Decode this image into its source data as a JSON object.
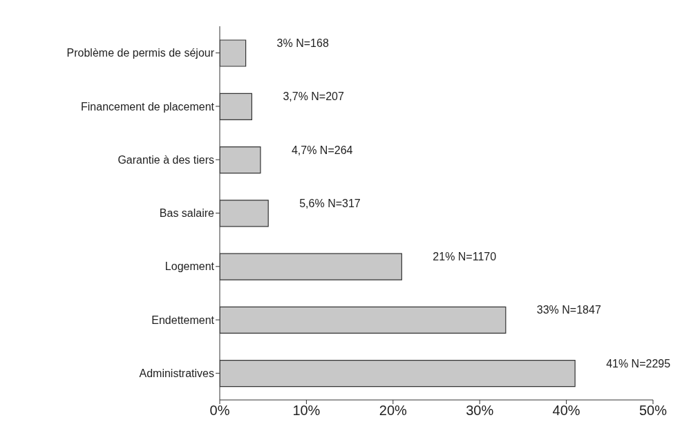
{
  "chart_data": {
    "type": "bar",
    "orientation": "horizontal",
    "categories": [
      "Problème de permis de séjour",
      "Financement de placement",
      "Garantie à des tiers",
      "Bas salaire",
      "Logement",
      "Endettement",
      "Administratives"
    ],
    "values": [
      3,
      3.7,
      4.7,
      5.6,
      21,
      33,
      41
    ],
    "value_labels": [
      "3% N=168",
      "3,7% N=207",
      "4,7% N=264",
      "5,6% N=317",
      "21% N=1170",
      "33% N=1847",
      "41% N=2295"
    ],
    "color": "#c8c8c8",
    "xlim": [
      0,
      50
    ],
    "xticks": [
      {
        "value": 0,
        "label": "0%"
      },
      {
        "value": 10,
        "label": "10%"
      },
      {
        "value": 20,
        "label": "20%"
      },
      {
        "value": 30,
        "label": "30%"
      },
      {
        "value": 40,
        "label": "40%"
      },
      {
        "value": 50,
        "label": "50%"
      }
    ],
    "grid": false,
    "legend": false
  }
}
